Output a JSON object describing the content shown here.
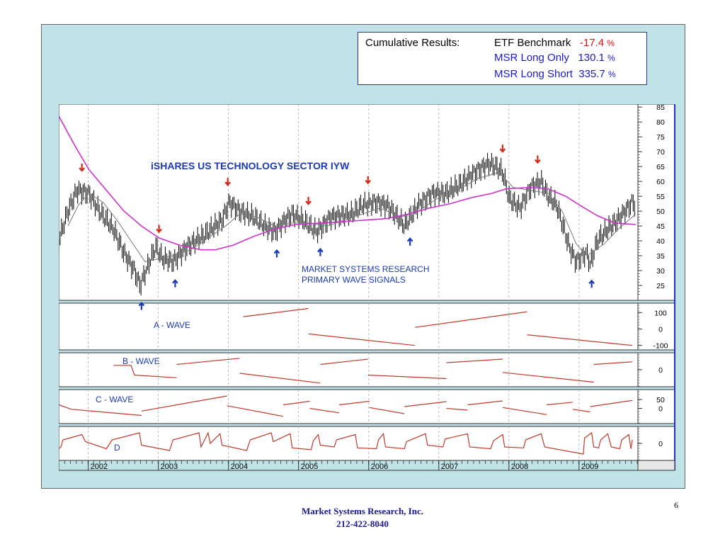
{
  "results": {
    "label": "Cumulative Results:",
    "rows": [
      {
        "name": "ETF Benchmark",
        "value": "-17.4",
        "pct": "%",
        "color": "#e01010"
      },
      {
        "name": "MSR Long Only",
        "value": "130.1",
        "pct": "%",
        "color": "#1a1ac8"
      },
      {
        "name": "MSR Long Short",
        "value": "335.7",
        "pct": "%",
        "color": "#1a1ac8"
      }
    ]
  },
  "chart_data": {
    "type": "line",
    "title": "iSHARES  US  TECHNOLOGY SECTOR   IYW",
    "annotation": [
      "MARKET SYSTEMS RESEARCH",
      "PRIMARY WAVE SIGNALS"
    ],
    "x_tick_labels": [
      "2002",
      "2003",
      "2004",
      "2005",
      "2006",
      "2007",
      "2008",
      "2009"
    ],
    "price_panel": {
      "y_ticks": [
        25,
        30,
        35,
        40,
        45,
        50,
        55,
        60,
        65,
        70,
        75,
        80,
        85
      ],
      "ylim": [
        20,
        86
      ],
      "price": [
        [
          2001.62,
          40
        ],
        [
          2001.75,
          50
        ],
        [
          2001.88,
          57
        ],
        [
          2002.05,
          56
        ],
        [
          2002.2,
          50
        ],
        [
          2002.4,
          44
        ],
        [
          2002.55,
          36
        ],
        [
          2002.7,
          30
        ],
        [
          2002.78,
          25
        ],
        [
          2002.9,
          32
        ],
        [
          2003.0,
          38
        ],
        [
          2003.1,
          34
        ],
        [
          2003.25,
          33
        ],
        [
          2003.45,
          38
        ],
        [
          2003.7,
          42
        ],
        [
          2003.95,
          47
        ],
        [
          2004.05,
          53
        ],
        [
          2004.2,
          50
        ],
        [
          2004.4,
          48
        ],
        [
          2004.55,
          45
        ],
        [
          2004.7,
          43
        ],
        [
          2004.85,
          47
        ],
        [
          2004.95,
          49
        ],
        [
          2005.1,
          47
        ],
        [
          2005.3,
          43
        ],
        [
          2005.5,
          48
        ],
        [
          2005.8,
          49
        ],
        [
          2005.95,
          52
        ],
        [
          2006.15,
          53
        ],
        [
          2006.3,
          52
        ],
        [
          2006.45,
          48
        ],
        [
          2006.55,
          45
        ],
        [
          2006.75,
          52
        ],
        [
          2006.95,
          56
        ],
        [
          2007.15,
          56
        ],
        [
          2007.35,
          59
        ],
        [
          2007.55,
          63
        ],
        [
          2007.75,
          66
        ],
        [
          2007.85,
          65
        ],
        [
          2007.95,
          63
        ],
        [
          2008.05,
          54
        ],
        [
          2008.2,
          51
        ],
        [
          2008.35,
          58
        ],
        [
          2008.5,
          60
        ],
        [
          2008.6,
          55
        ],
        [
          2008.72,
          52
        ],
        [
          2008.8,
          46
        ],
        [
          2008.9,
          38
        ],
        [
          2009.0,
          33
        ],
        [
          2009.15,
          36
        ],
        [
          2009.2,
          32
        ],
        [
          2009.3,
          40
        ],
        [
          2009.45,
          44
        ],
        [
          2009.55,
          46
        ],
        [
          2009.7,
          50
        ],
        [
          2009.8,
          53
        ],
        [
          2009.85,
          52
        ]
      ],
      "ma_short": [
        [
          2001.75,
          45
        ],
        [
          2001.9,
          52
        ],
        [
          2002.05,
          56
        ],
        [
          2002.25,
          53
        ],
        [
          2002.45,
          47
        ],
        [
          2002.65,
          40
        ],
        [
          2002.85,
          33
        ],
        [
          2003.05,
          34
        ],
        [
          2003.25,
          35
        ],
        [
          2003.5,
          37
        ],
        [
          2003.75,
          41
        ],
        [
          2004.0,
          45
        ],
        [
          2004.2,
          49
        ],
        [
          2004.45,
          48
        ],
        [
          2004.7,
          45
        ],
        [
          2004.95,
          46
        ],
        [
          2005.2,
          46
        ],
        [
          2005.45,
          45
        ],
        [
          2005.7,
          47
        ],
        [
          2005.95,
          49
        ],
        [
          2006.2,
          51
        ],
        [
          2006.5,
          48
        ],
        [
          2006.75,
          50
        ],
        [
          2007.0,
          54
        ],
        [
          2007.3,
          57
        ],
        [
          2007.6,
          61
        ],
        [
          2007.9,
          63
        ],
        [
          2008.1,
          58
        ],
        [
          2008.35,
          57
        ],
        [
          2008.6,
          56
        ],
        [
          2008.8,
          50
        ],
        [
          2009.0,
          39
        ],
        [
          2009.15,
          35
        ],
        [
          2009.4,
          39
        ],
        [
          2009.6,
          44
        ],
        [
          2009.85,
          49
        ]
      ],
      "ma_long": [
        [
          2001.62,
          82
        ],
        [
          2001.85,
          72
        ],
        [
          2002.05,
          64
        ],
        [
          2002.3,
          57
        ],
        [
          2002.55,
          50
        ],
        [
          2002.8,
          45
        ],
        [
          2003.05,
          41
        ],
        [
          2003.35,
          38.5
        ],
        [
          2003.65,
          37
        ],
        [
          2003.85,
          37
        ],
        [
          2004.1,
          38.5
        ],
        [
          2004.4,
          41.5
        ],
        [
          2004.7,
          44
        ],
        [
          2005.0,
          45.5
        ],
        [
          2005.35,
          46
        ],
        [
          2005.7,
          46.5
        ],
        [
          2006.0,
          47
        ],
        [
          2006.3,
          47.5
        ],
        [
          2006.6,
          49
        ],
        [
          2006.9,
          51
        ],
        [
          2007.2,
          52.5
        ],
        [
          2007.5,
          54.5
        ],
        [
          2007.8,
          56
        ],
        [
          2008.0,
          57.5
        ],
        [
          2008.35,
          58
        ],
        [
          2008.6,
          57.5
        ],
        [
          2008.85,
          55
        ],
        [
          2009.05,
          52
        ],
        [
          2009.3,
          48.5
        ],
        [
          2009.55,
          46
        ],
        [
          2009.85,
          45.5
        ]
      ]
    },
    "signals": [
      {
        "x": 2001.95,
        "dir": "sell"
      },
      {
        "x": 2002.8,
        "dir": "buy"
      },
      {
        "x": 2003.05,
        "dir": "sell"
      },
      {
        "x": 2003.28,
        "dir": "buy"
      },
      {
        "x": 2004.03,
        "dir": "sell"
      },
      {
        "x": 2004.73,
        "dir": "buy"
      },
      {
        "x": 2005.18,
        "dir": "sell"
      },
      {
        "x": 2005.35,
        "dir": "buy"
      },
      {
        "x": 2006.03,
        "dir": "sell"
      },
      {
        "x": 2006.63,
        "dir": "buy"
      },
      {
        "x": 2007.95,
        "dir": "sell"
      },
      {
        "x": 2008.45,
        "dir": "sell"
      },
      {
        "x": 2009.22,
        "dir": "buy"
      }
    ],
    "wave_panels": [
      {
        "name": "A - WAVE",
        "y_ticks": [
          "100",
          "0",
          "-100"
        ],
        "ylim": [
          -110,
          140
        ],
        "segments": [
          [
            [
              2004.25,
              75
            ],
            [
              2005.18,
              125
            ]
          ],
          [
            [
              2005.18,
              -30
            ],
            [
              2006.7,
              -100
            ]
          ],
          [
            [
              2006.7,
              10
            ],
            [
              2008.3,
              105
            ]
          ],
          [
            [
              2008.3,
              -35
            ],
            [
              2009.8,
              -100
            ]
          ]
        ]
      },
      {
        "name": "B - WAVE",
        "y_ticks": [
          "0"
        ],
        "ylim": [
          -80,
          80
        ],
        "segments": [
          [
            [
              2002.4,
              25
            ],
            [
              2002.65,
              25
            ],
            [
              2002.7,
              -30
            ],
            [
              2003.3,
              -45
            ]
          ],
          [
            [
              2003.3,
              30
            ],
            [
              2004.2,
              65
            ]
          ],
          [
            [
              2004.2,
              -20
            ],
            [
              2005.35,
              -75
            ]
          ],
          [
            [
              2005.35,
              30
            ],
            [
              2006.03,
              60
            ]
          ],
          [
            [
              2006.03,
              -30
            ],
            [
              2007.15,
              -50
            ]
          ],
          [
            [
              2007.15,
              40
            ],
            [
              2007.95,
              60
            ]
          ],
          [
            [
              2007.95,
              -15
            ],
            [
              2009.25,
              -70
            ]
          ],
          [
            [
              2009.25,
              30
            ],
            [
              2009.8,
              45
            ]
          ]
        ]
      },
      {
        "name": "C - WAVE",
        "y_ticks": [
          "50",
          "0"
        ],
        "ylim": [
          -70,
          90
        ],
        "segments": [
          [
            [
              2001.62,
              20
            ],
            [
              2001.8,
              -5
            ],
            [
              2002.8,
              -40
            ]
          ],
          [
            [
              2002.8,
              -15
            ],
            [
              2004.02,
              70
            ]
          ],
          [
            [
              2004.02,
              15
            ],
            [
              2004.82,
              -45
            ]
          ],
          [
            [
              2004.82,
              20
            ],
            [
              2005.2,
              40
            ]
          ],
          [
            [
              2005.2,
              0
            ],
            [
              2005.62,
              -25
            ]
          ],
          [
            [
              2005.62,
              20
            ],
            [
              2006.05,
              40
            ]
          ],
          [
            [
              2006.05,
              5
            ],
            [
              2006.55,
              -30
            ]
          ],
          [
            [
              2006.55,
              10
            ],
            [
              2007.15,
              38
            ]
          ],
          [
            [
              2007.15,
              0
            ],
            [
              2007.45,
              -10
            ]
          ],
          [
            [
              2007.45,
              20
            ],
            [
              2007.95,
              42
            ]
          ],
          [
            [
              2007.95,
              5
            ],
            [
              2008.58,
              -35
            ]
          ],
          [
            [
              2008.58,
              20
            ],
            [
              2008.95,
              35
            ]
          ],
          [
            [
              2008.95,
              -5
            ],
            [
              2009.2,
              -20
            ]
          ],
          [
            [
              2009.2,
              10
            ],
            [
              2009.8,
              45
            ]
          ]
        ]
      },
      {
        "name": "D",
        "y_ticks": [
          "0"
        ],
        "ylim": [
          -80,
          80
        ],
        "segments": [
          [
            [
              2001.62,
              -30
            ],
            [
              2001.65,
              -20
            ],
            [
              2001.68,
              20
            ],
            [
              2001.95,
              50
            ],
            [
              2002.0,
              10
            ],
            [
              2002.3,
              -30
            ],
            [
              2002.38,
              20
            ],
            [
              2002.77,
              60
            ],
            [
              2002.8,
              -10
            ],
            [
              2003.2,
              -40
            ],
            [
              2003.25,
              20
            ],
            [
              2003.62,
              60
            ],
            [
              2003.65,
              -20
            ],
            [
              2003.75,
              60
            ],
            [
              2003.78,
              0
            ],
            [
              2003.92,
              55
            ],
            [
              2003.95,
              -10
            ],
            [
              2004.3,
              -40
            ],
            [
              2004.35,
              20
            ],
            [
              2004.65,
              60
            ],
            [
              2004.68,
              10
            ],
            [
              2004.92,
              55
            ],
            [
              2004.95,
              -25
            ],
            [
              2005.22,
              -35
            ],
            [
              2005.25,
              15
            ],
            [
              2005.32,
              50
            ],
            [
              2005.35,
              -10
            ],
            [
              2005.55,
              -20
            ],
            [
              2005.58,
              20
            ],
            [
              2005.85,
              50
            ],
            [
              2005.88,
              -25
            ],
            [
              2006.15,
              -30
            ],
            [
              2006.18,
              20
            ],
            [
              2006.25,
              55
            ],
            [
              2006.28,
              -20
            ],
            [
              2006.55,
              -30
            ],
            [
              2006.58,
              10
            ],
            [
              2006.85,
              55
            ],
            [
              2006.88,
              -10
            ],
            [
              2007.1,
              -20
            ],
            [
              2007.13,
              25
            ],
            [
              2007.45,
              55
            ],
            [
              2007.48,
              -20
            ],
            [
              2007.78,
              -30
            ],
            [
              2007.82,
              15
            ],
            [
              2007.95,
              50
            ],
            [
              2007.98,
              -20
            ],
            [
              2008.25,
              -25
            ],
            [
              2008.28,
              20
            ],
            [
              2008.5,
              55
            ],
            [
              2008.55,
              -20
            ],
            [
              2009.1,
              -60
            ],
            [
              2009.12,
              30
            ],
            [
              2009.22,
              60
            ],
            [
              2009.25,
              -20
            ],
            [
              2009.32,
              -25
            ],
            [
              2009.35,
              20
            ],
            [
              2009.45,
              55
            ],
            [
              2009.5,
              -20
            ],
            [
              2009.62,
              -30
            ],
            [
              2009.65,
              20
            ],
            [
              2009.75,
              50
            ],
            [
              2009.78,
              -30
            ],
            [
              2009.8,
              20
            ]
          ]
        ]
      }
    ],
    "series_colors": {
      "price": "#000000",
      "ma_short": "#7a7a7a",
      "ma_long": "#cc33cc",
      "waves": "#c0392b",
      "sell": "#d42a1a",
      "buy": "#1a3ab8"
    }
  },
  "footer": {
    "company": "Market Systems Research, Inc.",
    "phone": "212-422-8040",
    "page": "6"
  }
}
